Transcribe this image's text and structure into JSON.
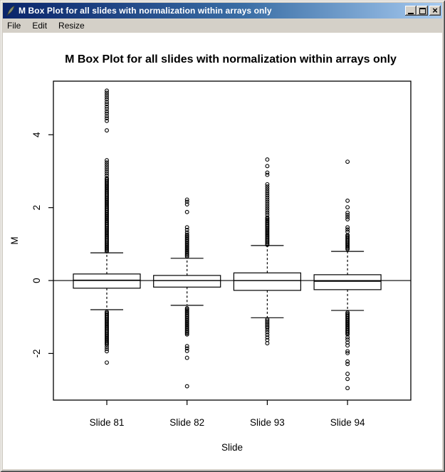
{
  "window": {
    "title": "M Box Plot for all slides with normalization within arrays only",
    "icon": "quill-feather-icon",
    "controls": {
      "minimize": "minimize-icon",
      "maximize": "maximize-icon",
      "close_glyph": "×"
    },
    "menu": [
      "File",
      "Edit",
      "Resize"
    ]
  },
  "colors": {
    "titlebar_left": "#0A246A",
    "titlebar_right": "#A6CAF0",
    "chrome": "#D4D0C8",
    "plot_background": "#FFFFFF",
    "ink": "#000000"
  },
  "chart_data": {
    "type": "boxplot",
    "title": "M Box Plot for all slides with normalization within arrays only",
    "xlabel": "Slide",
    "ylabel": "M",
    "ylim": [
      -3.28,
      5.47
    ],
    "yticks": [
      -2,
      0,
      2,
      4
    ],
    "grid": false,
    "reference_line_y": 0,
    "categories": [
      "Slide 81",
      "Slide 82",
      "Slide 93",
      "Slide 94"
    ],
    "series": [
      {
        "name": "Slide 81",
        "q1": -0.21,
        "median": 0.01,
        "q3": 0.18,
        "whisker_low": -0.8,
        "whisker_high": 0.76,
        "outliers_high_dense": {
          "from": 0.8,
          "to": 2.82,
          "step": 0.03
        },
        "outliers_high": [
          2.88,
          2.94,
          3.0,
          3.06,
          3.12,
          3.18,
          3.24,
          3.3,
          4.12,
          4.38,
          4.45,
          4.51,
          4.58,
          4.64,
          4.71,
          4.77,
          4.84,
          4.9,
          4.97,
          5.03,
          5.09,
          5.15,
          5.21
        ],
        "outliers_low_dense": {
          "from": -1.76,
          "to": -0.86,
          "step": 0.03
        },
        "outliers_low": [
          -1.82,
          -1.88,
          -1.94,
          -2.25
        ]
      },
      {
        "name": "Slide 82",
        "q1": -0.18,
        "median": 0.0,
        "q3": 0.14,
        "whisker_low": -0.68,
        "whisker_high": 0.61,
        "outliers_high_dense": {
          "from": 0.66,
          "to": 1.26,
          "step": 0.03
        },
        "outliers_high": [
          1.32,
          1.39,
          1.46,
          1.88,
          2.09,
          2.16,
          2.22
        ],
        "outliers_low_dense": {
          "from": -1.48,
          "to": -0.75,
          "step": 0.03
        },
        "outliers_low": [
          -1.8,
          -1.86,
          -1.93,
          -2.12,
          -2.9
        ]
      },
      {
        "name": "Slide 93",
        "q1": -0.27,
        "median": 0.0,
        "q3": 0.21,
        "whisker_low": -1.02,
        "whisker_high": 0.96,
        "outliers_high_dense": {
          "from": 0.98,
          "to": 1.74,
          "step": 0.03
        },
        "outliers_high": [
          1.8,
          1.86,
          1.92,
          1.98,
          2.04,
          2.1,
          2.16,
          2.22,
          2.28,
          2.34,
          2.4,
          2.46,
          2.52,
          2.58,
          2.64,
          2.9,
          2.96,
          3.14,
          3.32
        ],
        "outliers_low_dense": {
          "from": -1.3,
          "to": -1.06,
          "step": 0.04
        },
        "outliers_low": [
          -1.36,
          -1.42,
          -1.49,
          -1.56,
          -1.63,
          -1.72
        ]
      },
      {
        "name": "Slide 94",
        "q1": -0.25,
        "median": -0.02,
        "q3": 0.16,
        "whisker_low": -0.82,
        "whisker_high": 0.8,
        "outliers_high_dense": {
          "from": 0.86,
          "to": 1.26,
          "step": 0.03
        },
        "outliers_high": [
          1.34,
          1.4,
          1.46,
          1.68,
          1.74,
          1.8,
          1.86,
          2.01,
          2.19,
          3.26
        ],
        "outliers_low_dense": {
          "from": -1.48,
          "to": -0.88,
          "step": 0.03
        },
        "outliers_low": [
          -1.56,
          -1.62,
          -1.7,
          -1.78,
          -1.94,
          -1.99,
          -2.22,
          -2.29,
          -2.56,
          -2.7,
          -2.95
        ]
      }
    ]
  }
}
